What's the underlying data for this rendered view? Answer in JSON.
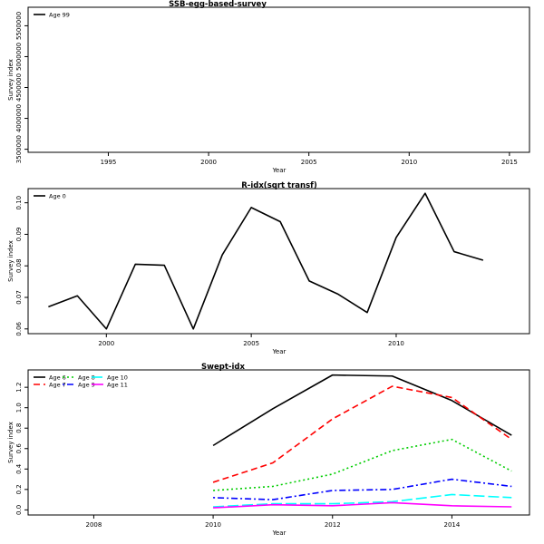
{
  "chart_data": [
    {
      "type": "line",
      "title": "SSB-egg-based-survey",
      "xlabel": "Year",
      "ylabel": "Survey index",
      "xlim": [
        1991,
        2016
      ],
      "ylim": [
        3450000,
        5800000
      ],
      "x_ticks": [
        1995,
        2000,
        2005,
        2010,
        2015
      ],
      "y_ticks": [
        3500000,
        4000000,
        4500000,
        5000000,
        5500000
      ],
      "legend": "top-left",
      "series": [
        {
          "name": "Age 99",
          "color": "#000000",
          "dash": "solid",
          "x": [],
          "y": []
        }
      ]
    },
    {
      "type": "line",
      "title": "R-idx(sqrt transf)",
      "xlabel": "Year",
      "ylabel": "Survey index",
      "xlim": [
        1997.3,
        2014.6
      ],
      "ylim": [
        0.0585,
        0.1045
      ],
      "x_ticks": [
        2000,
        2005,
        2010
      ],
      "y_ticks": [
        0.06,
        0.07,
        0.08,
        0.09,
        0.1
      ],
      "legend": "top-left",
      "series": [
        {
          "name": "Age 0",
          "color": "#000000",
          "dash": "solid",
          "x": [
            1998,
            1999,
            2000,
            2001,
            2002,
            2003,
            2004,
            2005,
            2006,
            2007,
            2008,
            2009,
            2010,
            2011,
            2012,
            2013
          ],
          "y": [
            0.067,
            0.0705,
            0.06,
            0.0805,
            0.0802,
            0.06,
            0.0835,
            0.0985,
            0.094,
            0.0752,
            0.071,
            0.0652,
            0.089,
            0.103,
            0.0845,
            0.0818
          ]
        }
      ]
    },
    {
      "type": "line",
      "title": "Swept-idx",
      "xlabel": "Year",
      "ylabel": "Survey index",
      "xlim": [
        2006.9,
        2015.3
      ],
      "ylim": [
        -0.05,
        1.37
      ],
      "x_ticks": [
        2008,
        2010,
        2012,
        2014
      ],
      "y_ticks": [
        0.0,
        0.2,
        0.4,
        0.6,
        0.8,
        1.0,
        1.2
      ],
      "legend": "top-left",
      "series": [
        {
          "name": "Age 6",
          "color": "#000000",
          "dash": "solid",
          "x": [
            2010,
            2011,
            2012,
            2013,
            2014,
            2015
          ],
          "y": [
            0.63,
            0.99,
            1.32,
            1.31,
            1.07,
            0.73
          ]
        },
        {
          "name": "Age 7",
          "color": "#ff0000",
          "dash": "dashed",
          "x": [
            2010,
            2011,
            2012,
            2013,
            2014,
            2015
          ],
          "y": [
            0.27,
            0.46,
            0.89,
            1.21,
            1.1,
            0.69
          ]
        },
        {
          "name": "Age 8",
          "color": "#00cd00",
          "dash": "dotted",
          "x": [
            2010,
            2011,
            2012,
            2013,
            2014,
            2015
          ],
          "y": [
            0.19,
            0.23,
            0.35,
            0.58,
            0.69,
            0.38
          ]
        },
        {
          "name": "Age 9",
          "color": "#0000ff",
          "dash": "dotdash",
          "x": [
            2010,
            2011,
            2012,
            2013,
            2014,
            2015
          ],
          "y": [
            0.12,
            0.1,
            0.19,
            0.2,
            0.3,
            0.23
          ]
        },
        {
          "name": "Age 10",
          "color": "#00ffff",
          "dash": "longdash",
          "x": [
            2010,
            2011,
            2012,
            2013,
            2014,
            2015
          ],
          "y": [
            0.03,
            0.06,
            0.06,
            0.08,
            0.15,
            0.12
          ]
        },
        {
          "name": "Age 11",
          "color": "#ff00ff",
          "dash": "solid",
          "x": [
            2010,
            2011,
            2012,
            2013,
            2014,
            2015
          ],
          "y": [
            0.02,
            0.05,
            0.04,
            0.07,
            0.04,
            0.03
          ]
        }
      ]
    }
  ]
}
